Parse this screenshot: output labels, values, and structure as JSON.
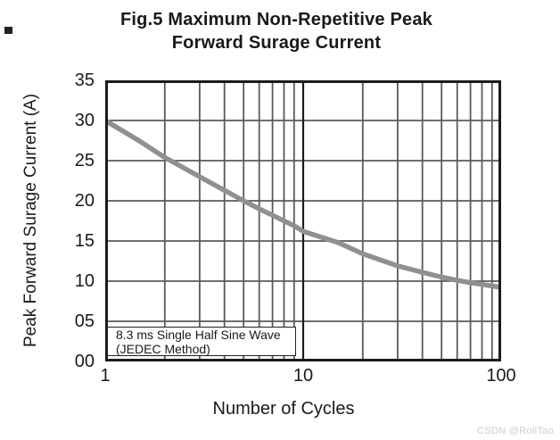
{
  "figure": {
    "title_line1": "Fig.5  Maximum Non-Repetitive Peak",
    "title_line2": "Forward Surage Current"
  },
  "watermark": "CSDN @RollTao",
  "chart_data": {
    "type": "line",
    "title": "Fig.5 Maximum Non-Repetitive Peak Forward Surage Current",
    "xlabel": "Number of Cycles",
    "ylabel": "Peak Forward Surage Current (A)",
    "x_scale": "log",
    "xlim": [
      1,
      100
    ],
    "ylim": [
      0,
      35
    ],
    "grid": true,
    "legend": false,
    "annotation": {
      "line1": "8.3 ms Single Half Sine Wave",
      "line2": "(JEDEC Method)"
    },
    "xticks": [
      {
        "label": "1",
        "value": 1
      },
      {
        "label": "10",
        "value": 10
      },
      {
        "label": "100",
        "value": 100
      }
    ],
    "yticks": [
      {
        "label": "35",
        "value": 35
      },
      {
        "label": "30",
        "value": 30
      },
      {
        "label": "25",
        "value": 25
      },
      {
        "label": "20",
        "value": 20
      },
      {
        "label": "15",
        "value": 15
      },
      {
        "label": "10",
        "value": 10
      },
      {
        "label": "05",
        "value": 5
      },
      {
        "label": "00",
        "value": 0
      }
    ],
    "y_gridlines": [
      5,
      10,
      15,
      20,
      25,
      30
    ],
    "x_gridlines_minor": [
      2,
      3,
      4,
      5,
      6,
      7,
      8,
      9,
      20,
      30,
      40,
      50,
      60,
      70,
      80,
      90
    ],
    "x_gridlines_major": [
      10
    ],
    "series": [
      {
        "name": "Maximum non-repetitive peak forward surge current",
        "points": [
          [
            1,
            30
          ],
          [
            1.5,
            27.4
          ],
          [
            2,
            25.4
          ],
          [
            3,
            23.0
          ],
          [
            4,
            21.3
          ],
          [
            5,
            20.0
          ],
          [
            6,
            19.0
          ],
          [
            7,
            18.2
          ],
          [
            8,
            17.5
          ],
          [
            9,
            16.9
          ],
          [
            10,
            16.2
          ],
          [
            15,
            14.8
          ],
          [
            20,
            13.4
          ],
          [
            30,
            11.9
          ],
          [
            40,
            11.1
          ],
          [
            50,
            10.5
          ],
          [
            60,
            10.1
          ],
          [
            70,
            9.8
          ],
          [
            80,
            9.6
          ],
          [
            90,
            9.4
          ],
          [
            100,
            9.2
          ]
        ]
      }
    ],
    "colors": {
      "curve": "#8f9190",
      "grid": "#575c5a",
      "grid_major": "#1c1c1c",
      "frame": "#1c1c1c",
      "text": "#1a1a1a",
      "watermark": "#c9cdcb",
      "background": "#ffffff"
    }
  }
}
